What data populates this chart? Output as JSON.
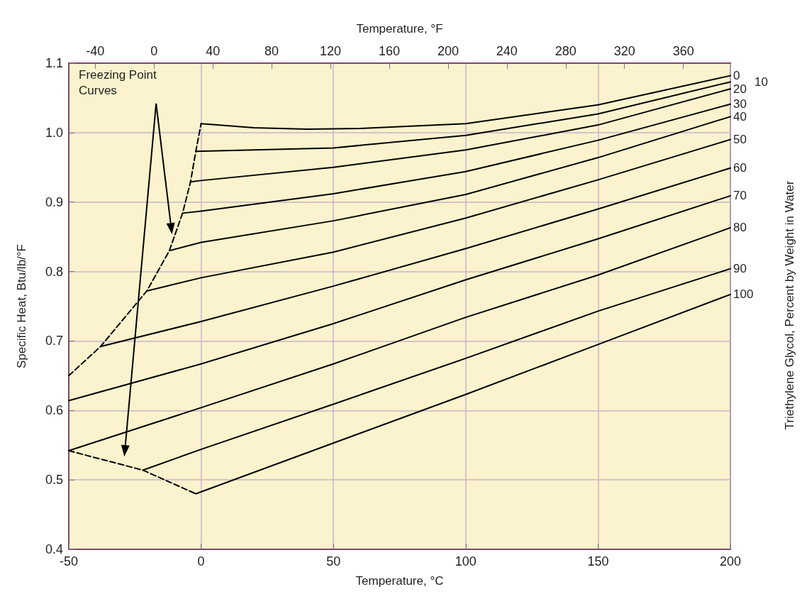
{
  "chart_data": {
    "type": "line",
    "xlabel": "Temperature, °C",
    "x2label": "Temperature, °F",
    "ylabel": "Specific Heat, Btu/lb/°F",
    "legend_title": "Triethylene Glycol, Percent by Weight in Water",
    "annotations": [
      "Freezing Point Curves"
    ],
    "xlim": [
      -50,
      200
    ],
    "xticks": [
      -50,
      0,
      50,
      100,
      150,
      200
    ],
    "x2lim": [
      -58,
      392
    ],
    "x2ticks": [
      -40,
      0,
      40,
      80,
      120,
      160,
      200,
      240,
      280,
      320,
      360
    ],
    "ylim": [
      0.4,
      1.1
    ],
    "yticks": [
      0.4,
      0.5,
      0.6,
      0.7,
      0.8,
      0.9,
      {
        "value": 1,
        "label": "1.0"
      },
      1.1
    ],
    "grid": true,
    "legend": false,
    "marker": "none",
    "series": [
      {
        "name": "0",
        "color": "#000000",
        "line_style": "solid",
        "x": [
          0,
          20,
          40,
          60,
          100,
          150,
          200
        ],
        "values": [
          1.013,
          1.007,
          1.005,
          1.006,
          1.013,
          1.04,
          1.082
        ]
      },
      {
        "name": "10",
        "color": "#000000",
        "line_style": "solid",
        "x": [
          -2,
          50,
          100,
          150,
          200
        ],
        "values": [
          0.973,
          0.978,
          0.996,
          1.027,
          1.073
        ]
      },
      {
        "name": "20",
        "color": "#000000",
        "line_style": "solid",
        "x": [
          -4,
          0,
          50,
          100,
          150,
          200
        ],
        "values": [
          0.929,
          0.931,
          0.95,
          0.975,
          1.011,
          1.063
        ]
      },
      {
        "name": "30",
        "color": "#000000",
        "line_style": "solid",
        "x": [
          -7,
          0,
          50,
          100,
          150,
          200
        ],
        "values": [
          0.884,
          0.887,
          0.912,
          0.944,
          0.989,
          1.041
        ]
      },
      {
        "name": "40",
        "color": "#000000",
        "line_style": "solid",
        "x": [
          -12,
          0,
          50,
          100,
          150,
          200
        ],
        "values": [
          0.83,
          0.842,
          0.873,
          0.911,
          0.964,
          1.023
        ]
      },
      {
        "name": "50",
        "color": "#000000",
        "line_style": "solid",
        "x": [
          -20.5,
          0,
          50,
          100,
          150,
          200
        ],
        "values": [
          0.772,
          0.791,
          0.828,
          0.877,
          0.932,
          0.99
        ]
      },
      {
        "name": "60",
        "color": "#000000",
        "line_style": "solid",
        "x": [
          -38,
          0,
          50,
          100,
          150,
          200
        ],
        "values": [
          0.692,
          0.728,
          0.779,
          0.833,
          0.89,
          0.949
        ]
      },
      {
        "name": "70",
        "color": "#000000",
        "line_style": "solid",
        "x": [
          -50,
          0,
          50,
          100,
          150,
          200
        ],
        "values": [
          0.614,
          0.667,
          0.725,
          0.788,
          0.847,
          0.909
        ]
      },
      {
        "name": "80",
        "color": "#000000",
        "line_style": "solid",
        "x": [
          -50,
          0,
          50,
          100,
          150,
          200
        ],
        "values": [
          0.542,
          0.604,
          0.667,
          0.734,
          0.795,
          0.863
        ]
      },
      {
        "name": "90",
        "color": "#000000",
        "line_style": "solid",
        "x": [
          -22,
          0,
          50,
          100,
          150,
          200
        ],
        "values": [
          0.514,
          0.544,
          0.609,
          0.675,
          0.743,
          0.804
        ]
      },
      {
        "name": "100",
        "color": "#000000",
        "line_style": "solid",
        "x": [
          -2,
          50,
          100,
          150,
          200
        ],
        "values": [
          0.48,
          0.553,
          0.623,
          0.695,
          0.767
        ]
      },
      {
        "color": "#000000",
        "line_style": "dashed",
        "x": [
          -50,
          -38,
          -20.5,
          -12,
          -7,
          -4,
          -2,
          0
        ],
        "values": [
          0.65,
          0.692,
          0.772,
          0.83,
          0.884,
          0.929,
          0.973,
          1.013
        ]
      },
      {
        "color": "#000000",
        "line_style": "dashed",
        "x": [
          -50,
          -22,
          -2
        ],
        "values": [
          0.542,
          0.514,
          0.48
        ]
      }
    ]
  }
}
